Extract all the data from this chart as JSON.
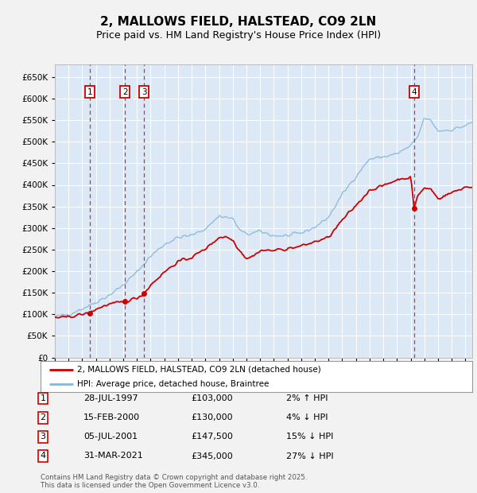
{
  "title": "2, MALLOWS FIELD, HALSTEAD, CO9 2LN",
  "subtitle": "Price paid vs. HM Land Registry's House Price Index (HPI)",
  "title_fontsize": 11,
  "subtitle_fontsize": 9,
  "background_color": "#f2f2f2",
  "plot_bg_color": "#dce8f5",
  "grid_color": "#ffffff",
  "ylim": [
    0,
    680000
  ],
  "yticks": [
    0,
    50000,
    100000,
    150000,
    200000,
    250000,
    300000,
    350000,
    400000,
    450000,
    500000,
    550000,
    600000,
    650000
  ],
  "transactions": [
    {
      "label": "1",
      "date": 1997.57,
      "price": 103000
    },
    {
      "label": "2",
      "date": 2000.12,
      "price": 130000
    },
    {
      "label": "3",
      "date": 2001.51,
      "price": 147500
    },
    {
      "label": "4",
      "date": 2021.25,
      "price": 345000
    }
  ],
  "transaction_labels": [
    {
      "num": "1",
      "date": "28-JUL-1997",
      "price": "£103,000",
      "pct": "2% ↑ HPI"
    },
    {
      "num": "2",
      "date": "15-FEB-2000",
      "price": "£130,000",
      "pct": "4% ↓ HPI"
    },
    {
      "num": "3",
      "date": "05-JUL-2001",
      "price": "£147,500",
      "pct": "15% ↓ HPI"
    },
    {
      "num": "4",
      "date": "31-MAR-2021",
      "price": "£345,000",
      "pct": "27% ↓ HPI"
    }
  ],
  "legend_entries": [
    "2, MALLOWS FIELD, HALSTEAD, CO9 2LN (detached house)",
    "HPI: Average price, detached house, Braintree"
  ],
  "red_line_color": "#cc0000",
  "blue_line_color": "#88b8d8",
  "vline_red_color": "#cc3333",
  "footer_text": "Contains HM Land Registry data © Crown copyright and database right 2025.\nThis data is licensed under the Open Government Licence v3.0.",
  "xstart": 1995.0,
  "xend": 2025.5
}
